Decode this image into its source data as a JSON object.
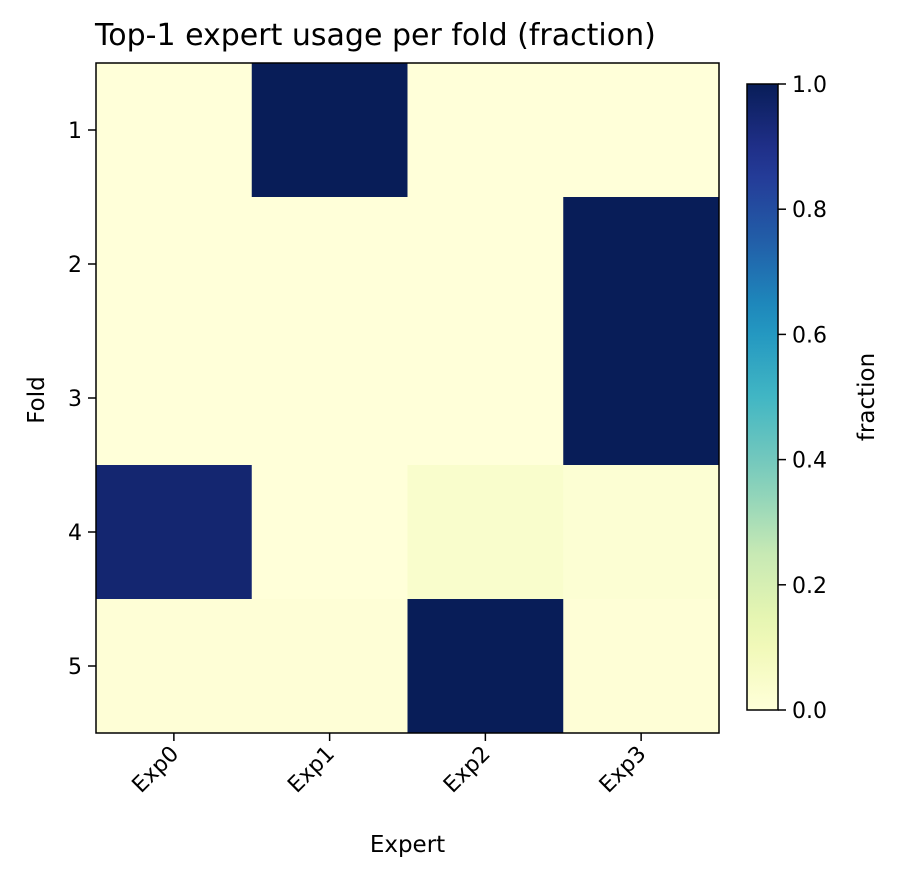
{
  "chart_data": {
    "type": "heatmap",
    "title": "Top-1 expert usage per fold (fraction)",
    "xlabel": "Expert",
    "ylabel": "Fold",
    "x_categories": [
      "Exp0",
      "Exp1",
      "Exp2",
      "Exp3"
    ],
    "y_categories": [
      "1",
      "2",
      "3",
      "4",
      "5"
    ],
    "values": [
      [
        0.0,
        1.0,
        0.0,
        0.0
      ],
      [
        0.0,
        0.0,
        0.0,
        1.0
      ],
      [
        0.0,
        0.0,
        0.0,
        1.0
      ],
      [
        0.95,
        0.0,
        0.04,
        0.02
      ],
      [
        0.01,
        0.01,
        1.0,
        0.01
      ]
    ],
    "colorbar": {
      "label": "fraction",
      "range": [
        0.0,
        1.0
      ],
      "ticks": [
        0.0,
        0.2,
        0.4,
        0.6,
        0.8,
        1.0
      ],
      "tick_labels": [
        "0.0",
        "0.2",
        "0.4",
        "0.6",
        "0.8",
        "1.0"
      ],
      "colormap": "YlGnBu"
    },
    "grid": false
  }
}
